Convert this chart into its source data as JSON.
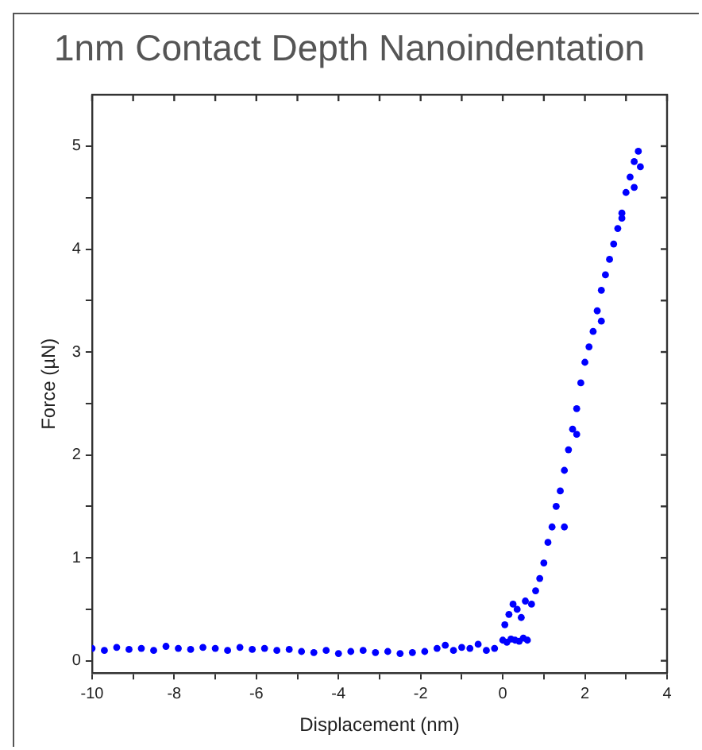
{
  "chart_data": {
    "type": "scatter",
    "title": "1nm Contact Depth Nanoindentation",
    "xlabel": "Displacement (nm)",
    "ylabel": "Force (µN)",
    "xlim": [
      -10,
      4
    ],
    "ylim": [
      -0.12,
      5.5
    ],
    "xticks": [
      -10,
      {
        "value": -9,
        "label": null
      },
      -8,
      {
        "value": -7,
        "label": null
      },
      -6,
      {
        "value": -5,
        "label": null
      },
      -4,
      {
        "value": -3,
        "label": null
      },
      -2,
      {
        "value": -1,
        "label": null
      },
      0,
      {
        "value": 1,
        "label": null
      },
      2,
      {
        "value": 3,
        "label": null
      },
      4
    ],
    "yticks": [
      0,
      {
        "value": 0.5,
        "label": null
      },
      1,
      {
        "value": 1.5,
        "label": null
      },
      2,
      {
        "value": 2.5,
        "label": null
      },
      3,
      {
        "value": 3.5,
        "label": null
      },
      4,
      {
        "value": 4.5,
        "label": null
      },
      5
    ],
    "grid": false,
    "legend": false,
    "marker": "circle",
    "series": [
      {
        "color": "#0000ff",
        "x": [
          -10,
          -9.7,
          -9.4,
          -9.1,
          -8.8,
          -8.5,
          -8.2,
          -7.9,
          -7.6,
          -7.3,
          -7,
          -6.7,
          -6.4,
          -6.1,
          -5.8,
          -5.5,
          -5.2,
          -4.9,
          -4.6,
          -4.3,
          -4,
          -3.7,
          -3.4,
          -3.1,
          -2.8,
          -2.5,
          -2.2,
          -1.9,
          -1.6,
          -1.4,
          -1.2,
          -1,
          -0.8,
          -0.6,
          -0.4,
          -0.2,
          0,
          0.1,
          0.2,
          0.3,
          0.4,
          0.5,
          0.6,
          0.05,
          0.15,
          0.25,
          0.35,
          0.45,
          0.55,
          0.7,
          0.8,
          0.9,
          1,
          1.1,
          1.2,
          1.3,
          1.4,
          1.5,
          1.6,
          1.7,
          1.8,
          1.9,
          2,
          2.1,
          2.2,
          2.3,
          2.4,
          2.5,
          2.6,
          2.7,
          2.8,
          2.9,
          3,
          3.1,
          3.2,
          3.3,
          3.35,
          1.5,
          1.8,
          2.4,
          2.9,
          3.2
        ],
        "values": [
          0.12,
          0.1,
          0.13,
          0.11,
          0.12,
          0.1,
          0.14,
          0.12,
          0.11,
          0.13,
          0.12,
          0.1,
          0.13,
          0.11,
          0.12,
          0.1,
          0.11,
          0.09,
          0.08,
          0.1,
          0.07,
          0.09,
          0.1,
          0.08,
          0.09,
          0.07,
          0.08,
          0.09,
          0.12,
          0.15,
          0.1,
          0.13,
          0.12,
          0.16,
          0.1,
          0.12,
          0.2,
          0.18,
          0.21,
          0.2,
          0.19,
          0.22,
          0.2,
          0.35,
          0.45,
          0.55,
          0.5,
          0.42,
          0.58,
          0.55,
          0.68,
          0.8,
          0.95,
          1.15,
          1.3,
          1.5,
          1.65,
          1.85,
          2.05,
          2.25,
          2.45,
          2.7,
          2.9,
          3.05,
          3.2,
          3.4,
          3.6,
          3.75,
          3.9,
          4.05,
          4.2,
          4.35,
          4.55,
          4.7,
          4.85,
          4.95,
          4.8,
          1.3,
          2.2,
          3.3,
          4.3,
          4.6
        ]
      }
    ]
  }
}
